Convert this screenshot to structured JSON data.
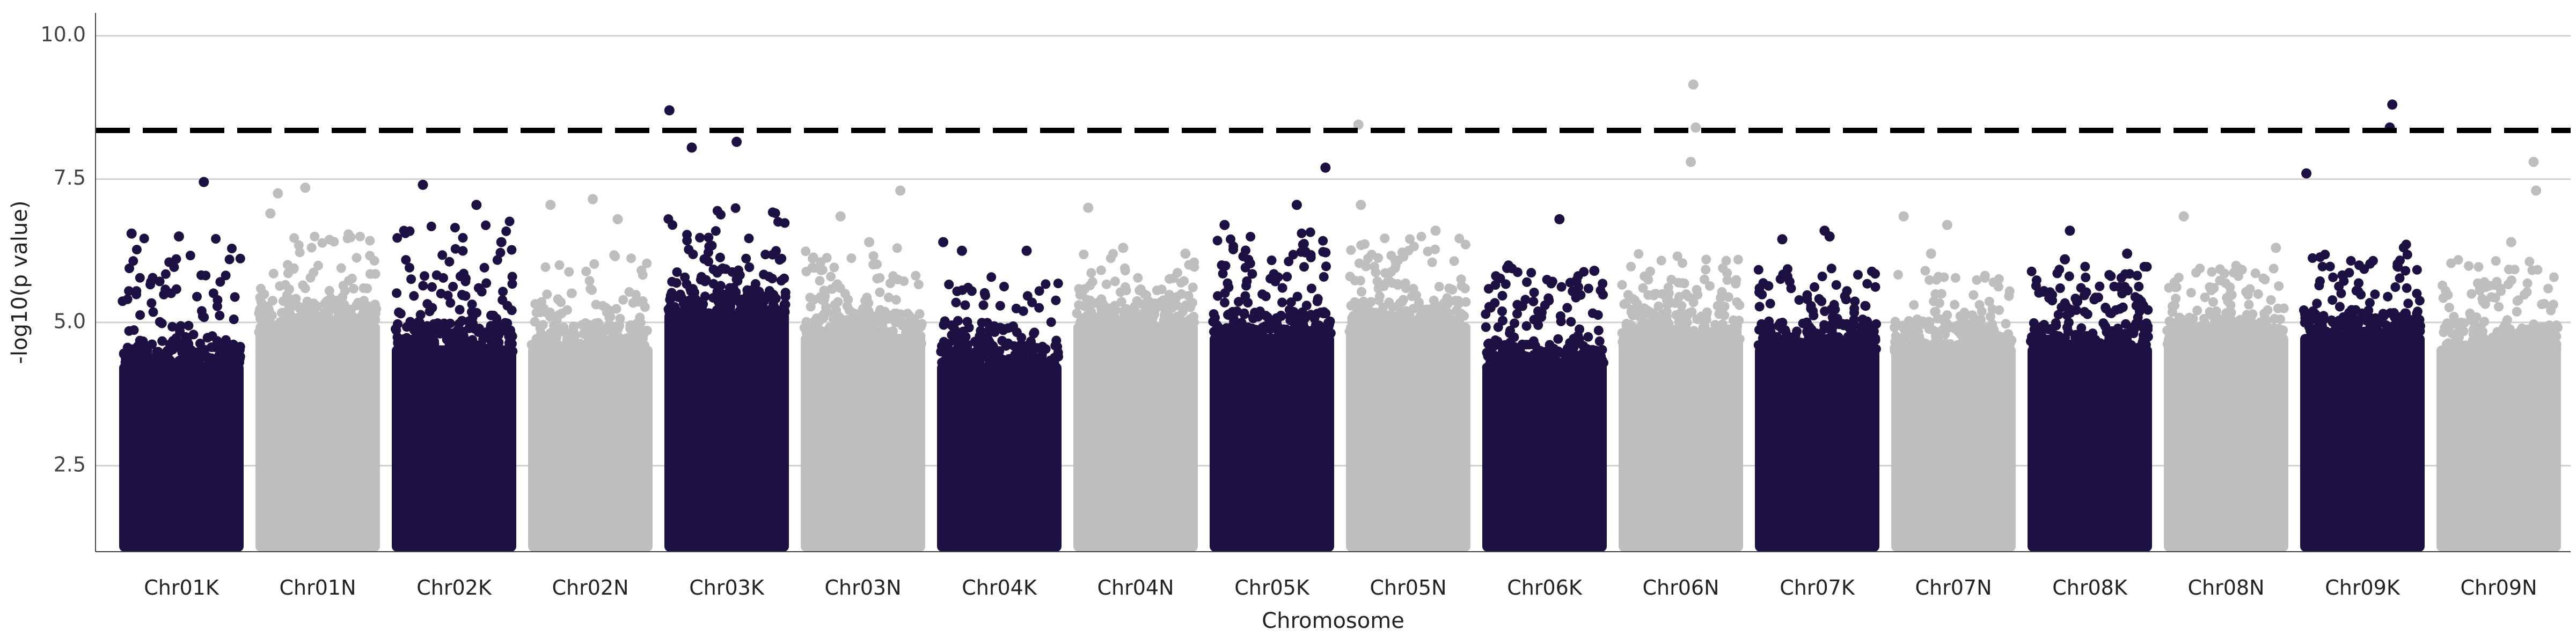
{
  "chart_data": {
    "type": "scatter",
    "subtype": "manhattan",
    "title": "",
    "xlabel": "Chromosome",
    "ylabel": "-log10(p value)",
    "ylim": [
      1.0,
      10.4
    ],
    "yticks": [
      2.5,
      5.0,
      7.5,
      10.0
    ],
    "ytick_labels": [
      "2.5",
      "5.0",
      "7.5",
      "10.0"
    ],
    "grid": true,
    "legend": "none",
    "threshold": 8.35,
    "colors": {
      "dark": "#1d1143",
      "light": "#bebebe",
      "threshold": "#000000",
      "grid": "#d0d0d0"
    },
    "categories": [
      "Chr01K",
      "Chr01N",
      "Chr02K",
      "Chr02N",
      "Chr03K",
      "Chr03N",
      "Chr04K",
      "Chr04N",
      "Chr05K",
      "Chr05N",
      "Chr06K",
      "Chr06N",
      "Chr07K",
      "Chr07N",
      "Chr08K",
      "Chr08N",
      "Chr09K",
      "Chr09N"
    ],
    "series": [
      {
        "name": "Chr01K",
        "color": "dark",
        "peak": 7.45,
        "dense_top": 4.3,
        "spread_top": 6.5,
        "notable_points": [
          {
            "pos": 0.68,
            "value": 7.45
          },
          {
            "pos": 0.1,
            "value": 6.55
          },
          {
            "pos": 0.48,
            "value": 6.5
          }
        ]
      },
      {
        "name": "Chr01N",
        "color": "light",
        "peak": 7.35,
        "dense_top": 5.0,
        "spread_top": 6.6,
        "notable_points": [
          {
            "pos": 0.4,
            "value": 7.35
          },
          {
            "pos": 0.18,
            "value": 7.25
          },
          {
            "pos": 0.12,
            "value": 6.9
          }
        ]
      },
      {
        "name": "Chr02K",
        "color": "dark",
        "peak": 7.4,
        "dense_top": 4.6,
        "spread_top": 6.8,
        "notable_points": [
          {
            "pos": 0.25,
            "value": 7.4
          },
          {
            "pos": 0.68,
            "value": 7.05
          },
          {
            "pos": 0.88,
            "value": 6.4
          }
        ]
      },
      {
        "name": "Chr02N",
        "color": "light",
        "peak": 7.15,
        "dense_top": 4.6,
        "spread_top": 6.2,
        "notable_points": [
          {
            "pos": 0.52,
            "value": 7.15
          },
          {
            "pos": 0.18,
            "value": 7.05
          },
          {
            "pos": 0.72,
            "value": 6.8
          }
        ]
      },
      {
        "name": "Chr03K",
        "color": "dark",
        "peak": 8.7,
        "dense_top": 5.2,
        "spread_top": 7.0,
        "notable_points": [
          {
            "pos": 0.04,
            "value": 8.7
          },
          {
            "pos": 0.58,
            "value": 8.15
          },
          {
            "pos": 0.22,
            "value": 8.05
          }
        ]
      },
      {
        "name": "Chr03N",
        "color": "light",
        "peak": 7.3,
        "dense_top": 4.8,
        "spread_top": 6.3,
        "notable_points": [
          {
            "pos": 0.8,
            "value": 7.3
          },
          {
            "pos": 0.32,
            "value": 6.85
          },
          {
            "pos": 0.55,
            "value": 6.4
          }
        ]
      },
      {
        "name": "Chr04K",
        "color": "dark",
        "peak": 6.4,
        "dense_top": 4.3,
        "spread_top": 5.8,
        "notable_points": [
          {
            "pos": 0.05,
            "value": 6.4
          },
          {
            "pos": 0.2,
            "value": 6.25
          },
          {
            "pos": 0.72,
            "value": 6.25
          }
        ]
      },
      {
        "name": "Chr04N",
        "color": "light",
        "peak": 7.0,
        "dense_top": 5.0,
        "spread_top": 6.2,
        "notable_points": [
          {
            "pos": 0.12,
            "value": 7.0
          },
          {
            "pos": 0.4,
            "value": 6.3
          },
          {
            "pos": 0.9,
            "value": 6.2
          }
        ]
      },
      {
        "name": "Chr05K",
        "color": "dark",
        "peak": 7.7,
        "dense_top": 4.8,
        "spread_top": 6.6,
        "notable_points": [
          {
            "pos": 0.93,
            "value": 7.7
          },
          {
            "pos": 0.7,
            "value": 7.05
          },
          {
            "pos": 0.12,
            "value": 6.7
          }
        ]
      },
      {
        "name": "Chr05N",
        "color": "light",
        "peak": 8.45,
        "dense_top": 5.0,
        "spread_top": 6.5,
        "notable_points": [
          {
            "pos": 0.1,
            "value": 8.45
          },
          {
            "pos": 0.12,
            "value": 7.05
          },
          {
            "pos": 0.72,
            "value": 6.6
          }
        ]
      },
      {
        "name": "Chr06K",
        "color": "dark",
        "peak": 6.8,
        "dense_top": 4.3,
        "spread_top": 6.0,
        "notable_points": [
          {
            "pos": 0.62,
            "value": 6.8
          },
          {
            "pos": 0.2,
            "value": 5.95
          },
          {
            "pos": 0.9,
            "value": 5.9
          }
        ]
      },
      {
        "name": "Chr06N",
        "color": "light",
        "peak": 9.15,
        "dense_top": 4.8,
        "spread_top": 6.2,
        "notable_points": [
          {
            "pos": 0.6,
            "value": 9.15
          },
          {
            "pos": 0.62,
            "value": 8.4
          },
          {
            "pos": 0.58,
            "value": 7.8
          }
        ]
      },
      {
        "name": "Chr07K",
        "color": "dark",
        "peak": 6.6,
        "dense_top": 4.6,
        "spread_top": 6.0,
        "notable_points": [
          {
            "pos": 0.56,
            "value": 6.6
          },
          {
            "pos": 0.22,
            "value": 6.45
          },
          {
            "pos": 0.6,
            "value": 6.5
          }
        ]
      },
      {
        "name": "Chr07N",
        "color": "light",
        "peak": 6.85,
        "dense_top": 4.6,
        "spread_top": 6.0,
        "notable_points": [
          {
            "pos": 0.1,
            "value": 6.85
          },
          {
            "pos": 0.45,
            "value": 6.7
          },
          {
            "pos": 0.32,
            "value": 6.2
          }
        ]
      },
      {
        "name": "Chr08K",
        "color": "dark",
        "peak": 6.6,
        "dense_top": 4.6,
        "spread_top": 6.0,
        "notable_points": [
          {
            "pos": 0.34,
            "value": 6.6
          },
          {
            "pos": 0.8,
            "value": 6.2
          },
          {
            "pos": 0.3,
            "value": 6.1
          }
        ]
      },
      {
        "name": "Chr08N",
        "color": "light",
        "peak": 6.85,
        "dense_top": 4.8,
        "spread_top": 6.0,
        "notable_points": [
          {
            "pos": 0.16,
            "value": 6.85
          },
          {
            "pos": 0.9,
            "value": 6.3
          },
          {
            "pos": 0.4,
            "value": 5.6
          }
        ]
      },
      {
        "name": "Chr09K",
        "color": "dark",
        "peak": 8.8,
        "dense_top": 4.8,
        "spread_top": 6.4,
        "notable_points": [
          {
            "pos": 0.74,
            "value": 8.8
          },
          {
            "pos": 0.72,
            "value": 8.4
          },
          {
            "pos": 0.05,
            "value": 7.6
          }
        ]
      },
      {
        "name": "Chr09N",
        "color": "light",
        "peak": 7.8,
        "dense_top": 4.6,
        "spread_top": 6.1,
        "notable_points": [
          {
            "pos": 0.78,
            "value": 7.8
          },
          {
            "pos": 0.8,
            "value": 7.3
          },
          {
            "pos": 0.6,
            "value": 6.4
          }
        ]
      }
    ]
  }
}
